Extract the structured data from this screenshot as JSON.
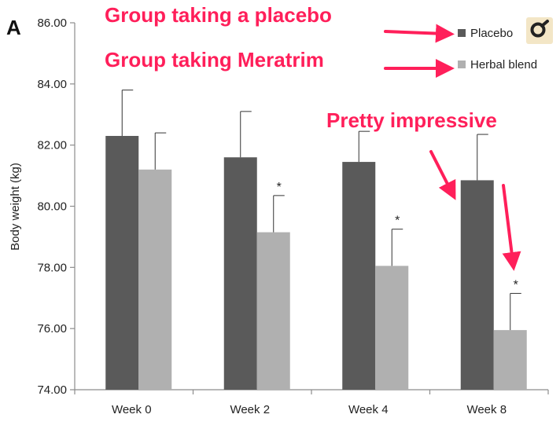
{
  "panel_label": "A",
  "colors": {
    "placebo": "#5a5a5a",
    "herbal": "#b0b0b0",
    "axis": "#8c8c8c",
    "callout": "#ff1f5a",
    "logo_bg": "#f3e6c6"
  },
  "legend_logo_icon": "magnifier-icon",
  "chart_data": {
    "type": "bar",
    "ylabel": "Body weight (kg)",
    "xlabel": "",
    "ylim": [
      74,
      86
    ],
    "yticks": [
      "74.00",
      "76.00",
      "78.00",
      "80.00",
      "82.00",
      "84.00",
      "86.00"
    ],
    "ytick_values": [
      74,
      76,
      78,
      80,
      82,
      84,
      86
    ],
    "categories": [
      "Week 0",
      "Week 2",
      "Week 4",
      "Week 8"
    ],
    "series": [
      {
        "name": "Placebo",
        "values": [
          82.3,
          81.6,
          81.45,
          80.85
        ],
        "error": [
          1.5,
          1.5,
          1.0,
          1.5
        ]
      },
      {
        "name": "Herbal blend",
        "values": [
          81.2,
          79.15,
          78.05,
          75.95
        ],
        "error": [
          1.2,
          1.2,
          1.2,
          1.2
        ]
      }
    ],
    "significance_markers": [
      "",
      "*",
      "*",
      "*"
    ],
    "legend_position": "top-right",
    "grid": false
  },
  "annotations": {
    "placebo_group": "Group taking a placebo",
    "meratrim_group": "Group taking Meratrim",
    "impressive": "Pretty impressive"
  }
}
